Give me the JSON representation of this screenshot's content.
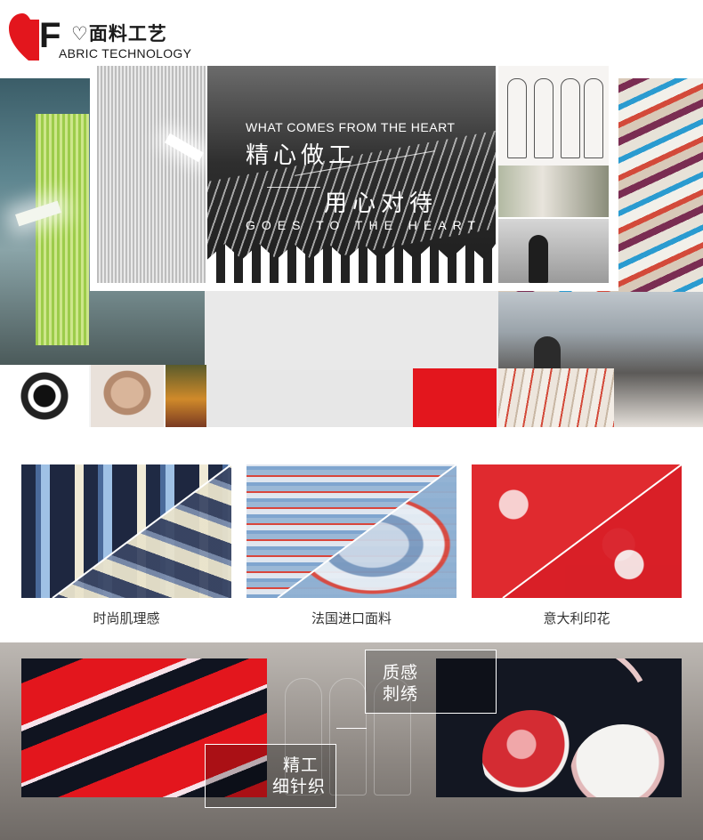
{
  "header": {
    "logo_letter": "F",
    "logo_title": "♡面料工艺",
    "logo_subtitle": "ABRIC TECHNOLOGY",
    "brand_color": "#e3161d"
  },
  "hero": {
    "line1": "WHAT COMES FROM THE HEART",
    "line2": "精心做工",
    "line3": "用心对待",
    "line4": "GOES TO THE HEART"
  },
  "fabrics": [
    {
      "caption": "时尚肌理感"
    },
    {
      "caption": "法国进口面料"
    },
    {
      "caption": "意大利印花"
    }
  ],
  "craft": {
    "embroidery_line1": "质感",
    "embroidery_line2": "刺绣",
    "knit_line1": "精工",
    "knit_line2": "细针织"
  }
}
